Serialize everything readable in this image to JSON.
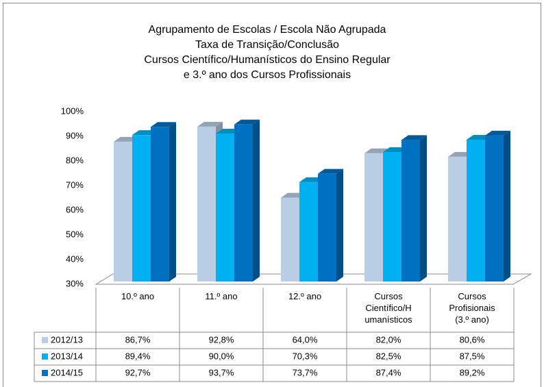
{
  "chart_data": {
    "type": "bar3d",
    "title": [
      "Agrupamento de Escolas / Escola Não Agrupada",
      "Taxa de Transição/Conclusão",
      "Cursos Científico/Humanísticos do Ensino Regular",
      "e 3.º ano dos Cursos Profissionais"
    ],
    "categories": [
      "10.º ano",
      "11.º ano",
      "12.º ano",
      "Cursos\nCientífico/H\numanísticos",
      "Cursos\nProfisionais\n(3.º ano)"
    ],
    "series": [
      {
        "name": "2012/13",
        "color": "#b9cde5",
        "values": [
          86.7,
          92.8,
          64.0,
          82.0,
          80.6
        ],
        "value_labels": [
          "86,7%",
          "92,8%",
          "64,0%",
          "82,0%",
          "80,6%"
        ]
      },
      {
        "name": "2013/14",
        "color": "#00b0f0",
        "values": [
          89.4,
          90.0,
          70.3,
          82.5,
          87.5
        ],
        "value_labels": [
          "89,4%",
          "90,0%",
          "70,3%",
          "82,5%",
          "87,5%"
        ]
      },
      {
        "name": "2014/15",
        "color": "#0070c0",
        "values": [
          92.7,
          93.7,
          73.7,
          87.4,
          89.2
        ],
        "value_labels": [
          "92,7%",
          "93,7%",
          "73,7%",
          "87,4%",
          "89,2%"
        ]
      }
    ],
    "ylim": [
      30,
      100
    ],
    "yticks": [
      {
        "value": 30,
        "label": "30%"
      },
      {
        "value": 40,
        "label": "40%"
      },
      {
        "value": 50,
        "label": "50%"
      },
      {
        "value": 60,
        "label": "60%"
      },
      {
        "value": 70,
        "label": "70%"
      },
      {
        "value": 80,
        "label": "80%"
      },
      {
        "value": 90,
        "label": "90%"
      },
      {
        "value": 100,
        "label": "100%"
      }
    ]
  }
}
